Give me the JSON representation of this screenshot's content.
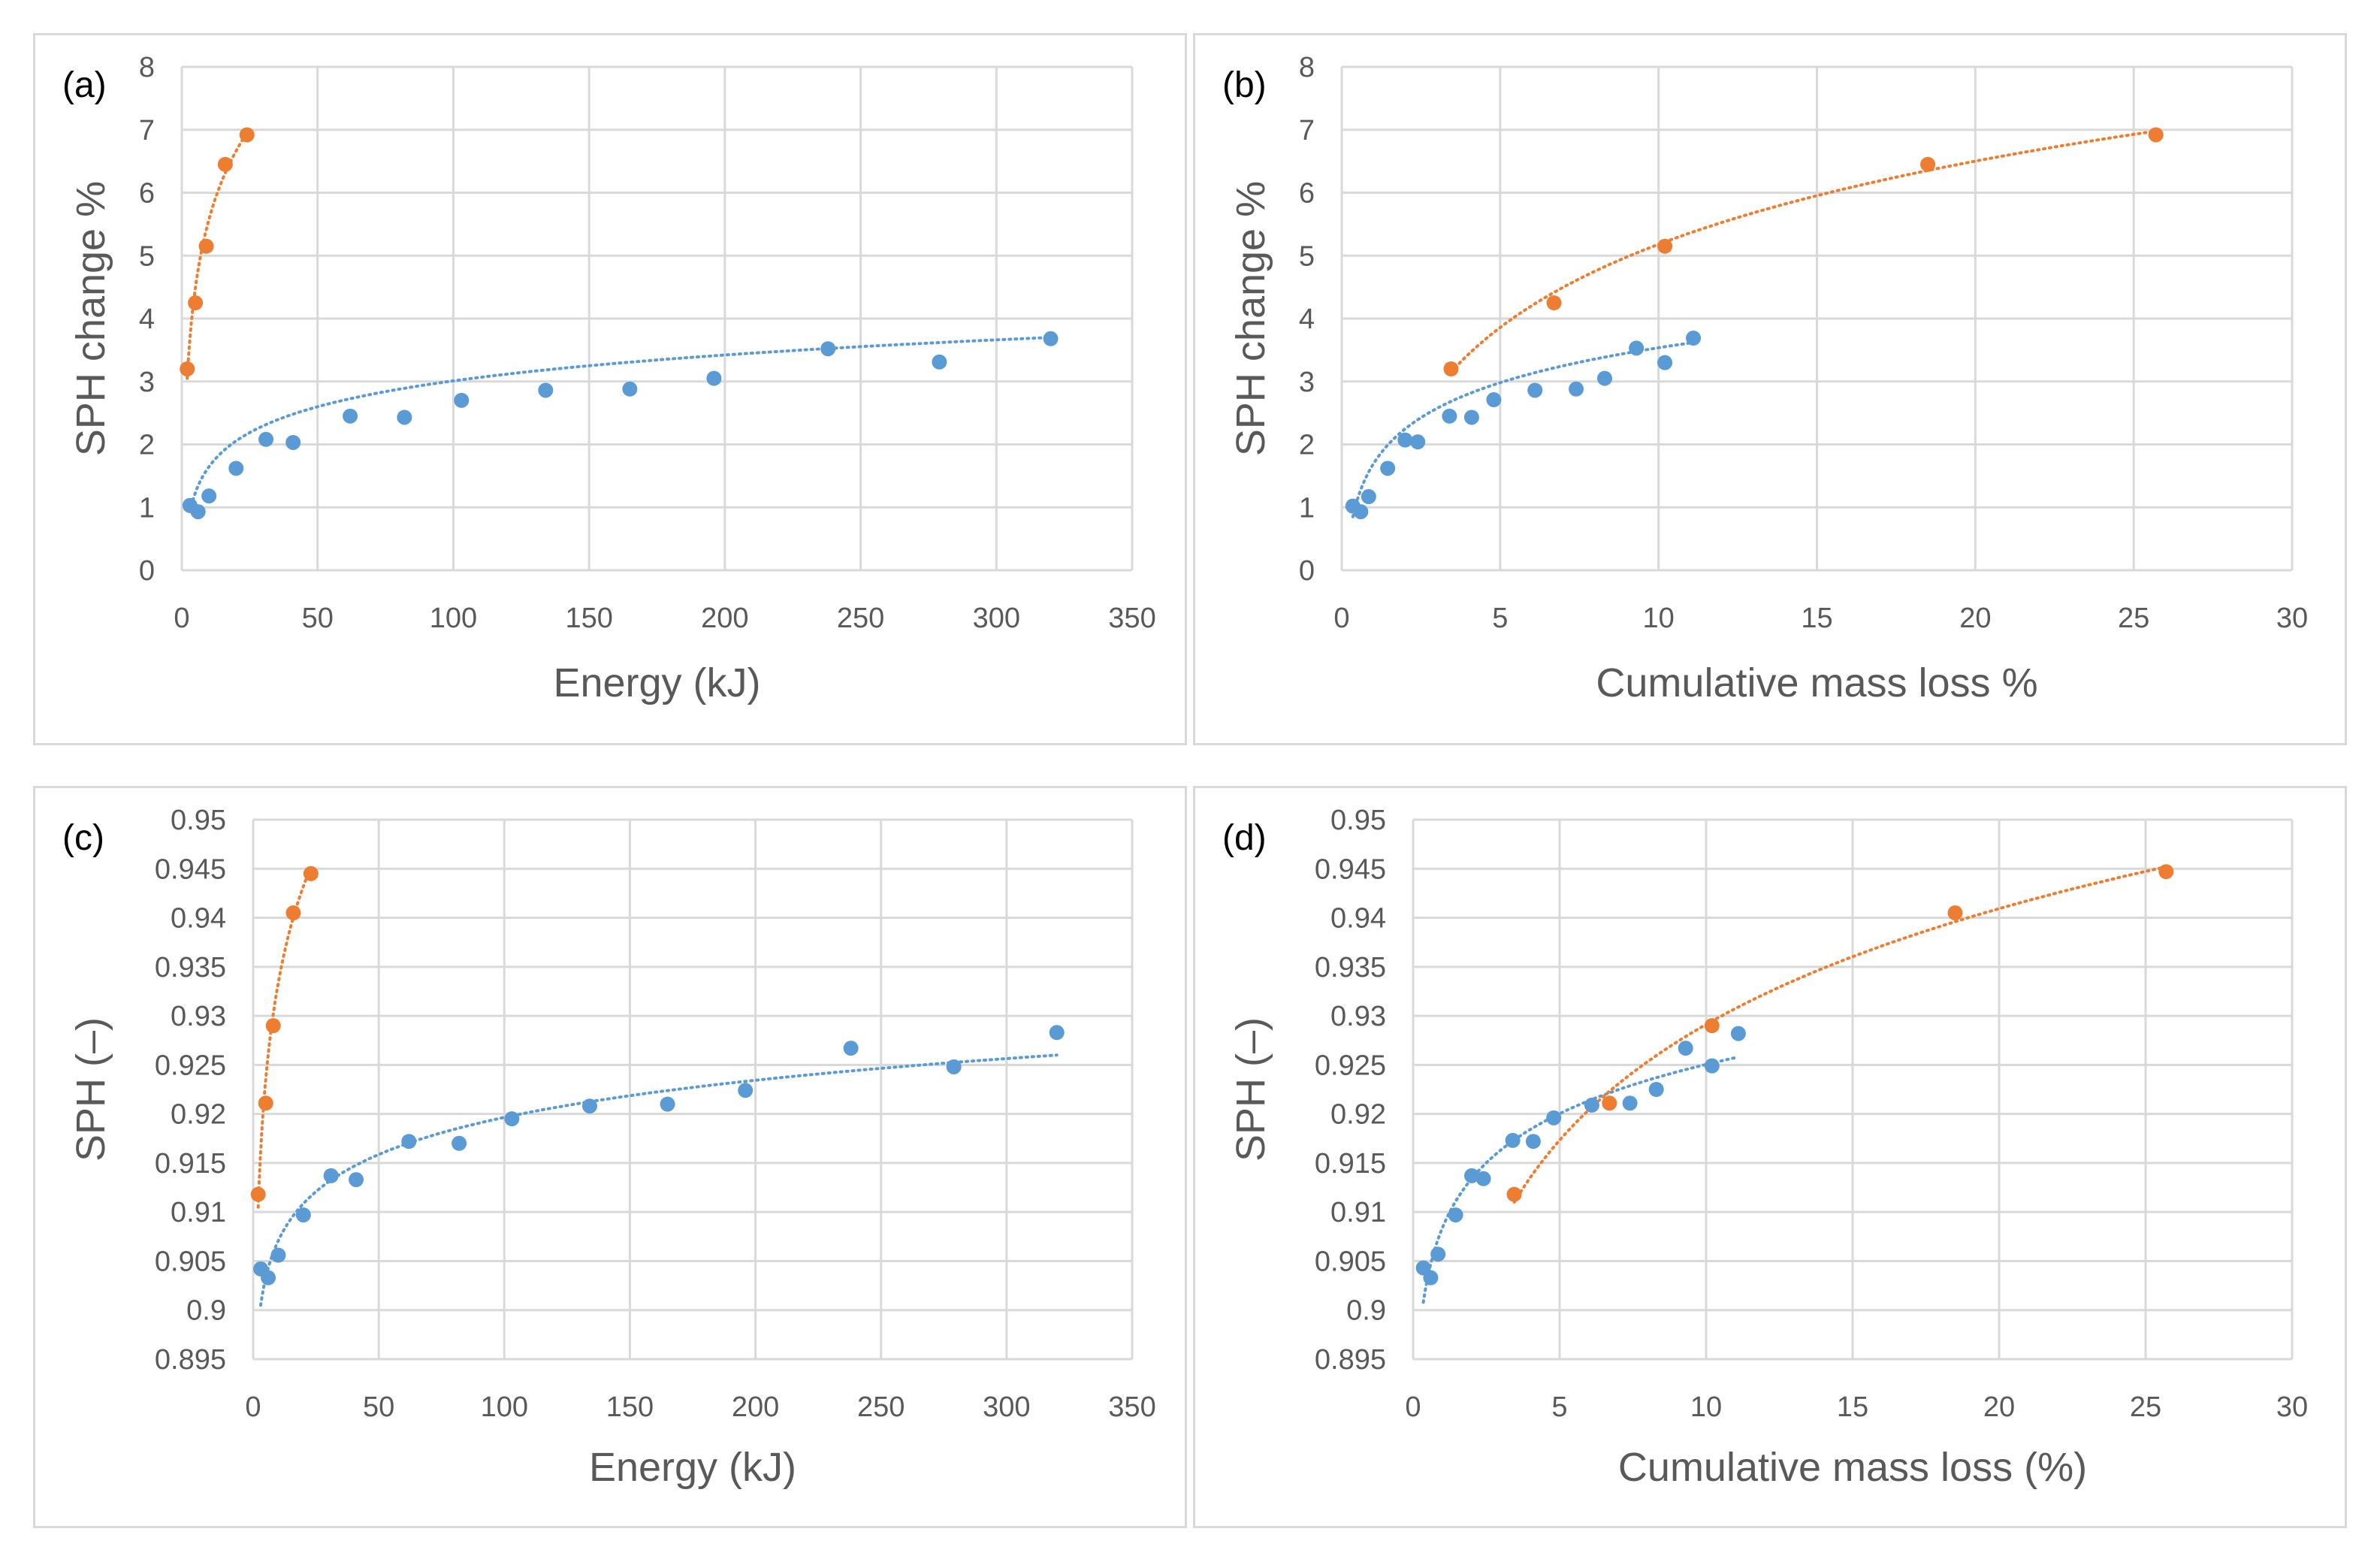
{
  "colors": {
    "series_blue": "#5b9bd5",
    "series_orange": "#ed7d31",
    "grid": "#d9d9d9",
    "text": "#595959"
  },
  "chart_data": [
    {
      "id": "a",
      "type": "scatter",
      "panel_label": "(a)",
      "xlabel": "Energy (kJ)",
      "ylabel": "SPH change %",
      "xlim": [
        0,
        350
      ],
      "ylim": [
        0,
        8
      ],
      "xticks": [
        0,
        50,
        100,
        150,
        200,
        250,
        300,
        350
      ],
      "yticks": [
        0,
        1,
        2,
        3,
        4,
        5,
        6,
        7,
        8
      ],
      "xtick_labels": [
        "0",
        "50",
        "100",
        "150",
        "200",
        "250",
        "300",
        "350"
      ],
      "ytick_labels": [
        "0",
        "1",
        "2",
        "3",
        "4",
        "5",
        "6",
        "7",
        "8"
      ],
      "grid": true,
      "series": [
        {
          "name": "blue",
          "color": "#5b9bd5",
          "x": [
            3,
            6,
            10,
            20,
            31,
            41,
            62,
            82,
            103,
            134,
            165,
            196,
            238,
            279,
            320
          ],
          "y": [
            1.03,
            0.93,
            1.18,
            1.62,
            2.08,
            2.03,
            2.45,
            2.43,
            2.7,
            2.86,
            2.88,
            3.05,
            3.52,
            3.31,
            3.68
          ],
          "trend": {
            "type": "log",
            "x_start": 3,
            "x_end": 320,
            "y_start": 0.93,
            "y_end": 3.7
          }
        },
        {
          "name": "orange",
          "color": "#ed7d31",
          "x": [
            2,
            5,
            9,
            16,
            24
          ],
          "y": [
            3.2,
            4.25,
            5.15,
            6.45,
            6.92
          ],
          "trend": {
            "type": "log",
            "x_start": 2,
            "x_end": 24,
            "y_start": 3.05,
            "y_end": 6.95
          }
        }
      ]
    },
    {
      "id": "b",
      "type": "scatter",
      "panel_label": "(b)",
      "xlabel": "Cumulative mass loss %",
      "ylabel": "SPH change %",
      "xlim": [
        0,
        30
      ],
      "ylim": [
        0,
        8
      ],
      "xticks": [
        0,
        5,
        10,
        15,
        20,
        25,
        30
      ],
      "yticks": [
        0,
        1,
        2,
        3,
        4,
        5,
        6,
        7,
        8
      ],
      "xtick_labels": [
        "0",
        "5",
        "10",
        "15",
        "20",
        "25",
        "30"
      ],
      "ytick_labels": [
        "0",
        "1",
        "2",
        "3",
        "4",
        "5",
        "6",
        "7",
        "8"
      ],
      "grid": true,
      "series": [
        {
          "name": "blue",
          "color": "#5b9bd5",
          "x": [
            0.35,
            0.6,
            0.85,
            1.45,
            2.0,
            2.4,
            3.4,
            4.1,
            4.8,
            6.1,
            7.4,
            8.3,
            9.3,
            10.2,
            11.1
          ],
          "y": [
            1.02,
            0.93,
            1.17,
            1.62,
            2.07,
            2.04,
            2.45,
            2.43,
            2.71,
            2.86,
            2.88,
            3.05,
            3.53,
            3.3,
            3.69
          ],
          "trend": {
            "type": "log",
            "x_start": 0.35,
            "x_end": 11.1,
            "y_start": 0.85,
            "y_end": 3.62
          }
        },
        {
          "name": "orange",
          "color": "#ed7d31",
          "x": [
            3.45,
            6.7,
            10.2,
            18.5,
            25.7
          ],
          "y": [
            3.2,
            4.25,
            5.15,
            6.45,
            6.92
          ],
          "trend": {
            "type": "log",
            "x_start": 3.45,
            "x_end": 25.7,
            "y_start": 3.15,
            "y_end": 6.98
          }
        }
      ]
    },
    {
      "id": "c",
      "type": "scatter",
      "panel_label": "(c)",
      "xlabel": "Energy (kJ)",
      "ylabel": "SPH (–)",
      "xlim": [
        0,
        350
      ],
      "ylim": [
        0.895,
        0.95
      ],
      "xticks": [
        0,
        50,
        100,
        150,
        200,
        250,
        300,
        350
      ],
      "yticks": [
        0.895,
        0.9,
        0.905,
        0.91,
        0.915,
        0.92,
        0.925,
        0.93,
        0.935,
        0.94,
        0.945,
        0.95
      ],
      "xtick_labels": [
        "0",
        "50",
        "100",
        "150",
        "200",
        "250",
        "300",
        "350"
      ],
      "ytick_labels": [
        "0.895",
        "0.9",
        "0.905",
        "0.91",
        "0.915",
        "0.92",
        "0.925",
        "0.93",
        "0.935",
        "0.94",
        "0.945",
        "0.95"
      ],
      "grid": true,
      "series": [
        {
          "name": "blue",
          "color": "#5b9bd5",
          "x": [
            3,
            6,
            10,
            20,
            31,
            41,
            62,
            82,
            103,
            134,
            165,
            196,
            238,
            279,
            320
          ],
          "y": [
            0.9042,
            0.9033,
            0.9056,
            0.9097,
            0.9137,
            0.9133,
            0.9172,
            0.917,
            0.9195,
            0.9208,
            0.921,
            0.9224,
            0.9267,
            0.9248,
            0.9283
          ],
          "trend": {
            "type": "log",
            "x_start": 3,
            "x_end": 320,
            "y_start": 0.9005,
            "y_end": 0.926
          }
        },
        {
          "name": "orange",
          "color": "#ed7d31",
          "x": [
            2,
            5,
            8,
            16,
            23
          ],
          "y": [
            0.9118,
            0.9211,
            0.929,
            0.9405,
            0.9445
          ],
          "trend": {
            "type": "log",
            "x_start": 2,
            "x_end": 23,
            "y_start": 0.9105,
            "y_end": 0.9452
          }
        }
      ]
    },
    {
      "id": "d",
      "type": "scatter",
      "panel_label": "(d)",
      "xlabel": "Cumulative mass loss (%)",
      "ylabel": "SPH (–)",
      "xlim": [
        0,
        30
      ],
      "ylim": [
        0.895,
        0.95
      ],
      "xticks": [
        0,
        5,
        10,
        15,
        20,
        25,
        30
      ],
      "yticks": [
        0.895,
        0.9,
        0.905,
        0.91,
        0.915,
        0.92,
        0.925,
        0.93,
        0.935,
        0.94,
        0.945,
        0.95
      ],
      "xtick_labels": [
        "0",
        "5",
        "10",
        "15",
        "20",
        "25",
        "30"
      ],
      "ytick_labels": [
        "0.895",
        "0.9",
        "0.905",
        "0.91",
        "0.915",
        "0.92",
        "0.925",
        "0.93",
        "0.935",
        "0.94",
        "0.945",
        "0.95"
      ],
      "grid": true,
      "series": [
        {
          "name": "blue",
          "color": "#5b9bd5",
          "x": [
            0.35,
            0.6,
            0.85,
            1.45,
            2.0,
            2.4,
            3.4,
            4.1,
            4.8,
            6.1,
            7.4,
            8.3,
            9.3,
            10.2,
            11.1
          ],
          "y": [
            0.9043,
            0.9033,
            0.9057,
            0.9097,
            0.9137,
            0.9134,
            0.9173,
            0.9172,
            0.9196,
            0.9209,
            0.9211,
            0.9225,
            0.9267,
            0.9249,
            0.9282
          ],
          "trend": {
            "type": "log",
            "x_start": 0.35,
            "x_end": 11.1,
            "y_start": 0.9008,
            "y_end": 0.9258
          }
        },
        {
          "name": "orange",
          "color": "#ed7d31",
          "x": [
            3.45,
            6.7,
            10.2,
            18.5,
            25.7
          ],
          "y": [
            0.9118,
            0.9211,
            0.929,
            0.9405,
            0.9447
          ],
          "trend": {
            "type": "log",
            "x_start": 3.45,
            "x_end": 25.7,
            "y_start": 0.911,
            "y_end": 0.9452
          }
        }
      ]
    }
  ]
}
